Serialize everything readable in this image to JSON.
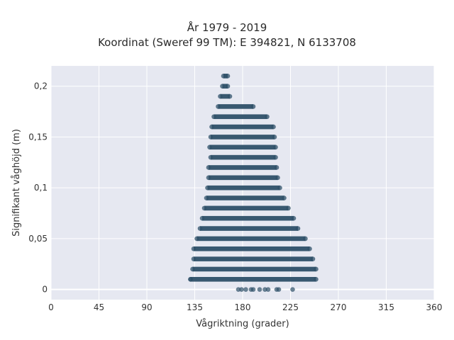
{
  "chart_data": {
    "type": "scatter",
    "title": "År 1979 - 2019",
    "subtitle": "Koordinat (Sweref 99 TM): E 394821, N 6133708",
    "xlabel": "Vågriktning (grader)",
    "ylabel": "Signifikant våghöjd (m)",
    "xlim": [
      0,
      360
    ],
    "ylim": [
      -0.01,
      0.22
    ],
    "xticks": [
      0,
      45,
      90,
      135,
      180,
      225,
      270,
      315,
      360
    ],
    "xtick_labels": [
      "0",
      "45",
      "90",
      "135",
      "180",
      "225",
      "270",
      "315",
      "360"
    ],
    "yticks": [
      0,
      0.05,
      0.1,
      0.15,
      0.2
    ],
    "ytick_labels": [
      "0",
      "0,05",
      "0,1",
      "0,15",
      "0,2"
    ],
    "grid": true,
    "marker_color": "#2e5068",
    "plot_bg": "#e6e8f1",
    "bands": [
      {
        "y": 0.21,
        "x_min": 162,
        "x_max": 166
      },
      {
        "y": 0.2,
        "x_min": 161,
        "x_max": 166
      },
      {
        "y": 0.19,
        "x_min": 159,
        "x_max": 168
      },
      {
        "y": 0.18,
        "x_min": 157,
        "x_max": 190
      },
      {
        "y": 0.17,
        "x_min": 153,
        "x_max": 203
      },
      {
        "y": 0.16,
        "x_min": 151,
        "x_max": 209
      },
      {
        "y": 0.15,
        "x_min": 150,
        "x_max": 210
      },
      {
        "y": 0.14,
        "x_min": 149,
        "x_max": 211
      },
      {
        "y": 0.13,
        "x_min": 150,
        "x_max": 211
      },
      {
        "y": 0.12,
        "x_min": 148,
        "x_max": 212
      },
      {
        "y": 0.11,
        "x_min": 148,
        "x_max": 213
      },
      {
        "y": 0.1,
        "x_min": 147,
        "x_max": 215
      },
      {
        "y": 0.09,
        "x_min": 146,
        "x_max": 219
      },
      {
        "y": 0.08,
        "x_min": 144,
        "x_max": 223
      },
      {
        "y": 0.07,
        "x_min": 142,
        "x_max": 228
      },
      {
        "y": 0.06,
        "x_min": 140,
        "x_max": 232
      },
      {
        "y": 0.05,
        "x_min": 137,
        "x_max": 239
      },
      {
        "y": 0.04,
        "x_min": 134,
        "x_max": 243
      },
      {
        "y": 0.03,
        "x_min": 134,
        "x_max": 246
      },
      {
        "y": 0.02,
        "x_min": 133,
        "x_max": 249
      },
      {
        "y": 0.01,
        "x_min": 131,
        "x_max": 249
      }
    ],
    "zero_points": [
      {
        "x": 176,
        "y": 0
      },
      {
        "x": 179,
        "y": 0
      },
      {
        "x": 183,
        "y": 0
      },
      {
        "x": 188,
        "y": 0
      },
      {
        "x": 190,
        "y": 0
      },
      {
        "x": 196,
        "y": 0
      },
      {
        "x": 201,
        "y": 0
      },
      {
        "x": 204,
        "y": 0
      },
      {
        "x": 212,
        "y": 0
      },
      {
        "x": 214,
        "y": 0
      },
      {
        "x": 227,
        "y": 0
      }
    ],
    "outlier_points": [
      {
        "x": 131,
        "y": 0.01
      }
    ]
  }
}
